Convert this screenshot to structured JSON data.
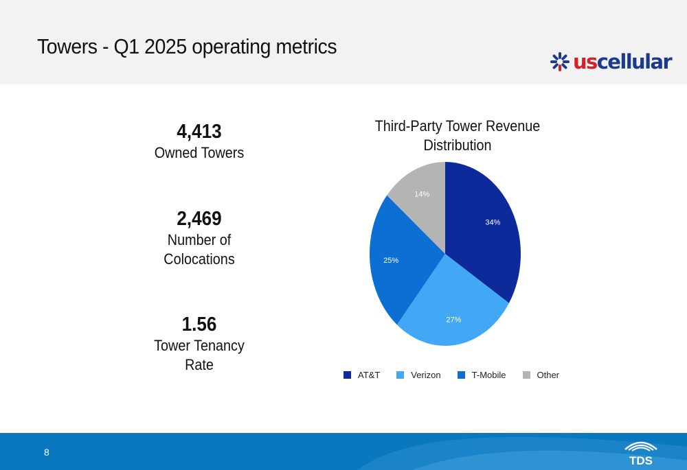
{
  "header": {
    "title": "Towers - Q1 2025 operating metrics"
  },
  "logo": {
    "us": "us",
    "cellular": "cellular",
    "name": "uscellular-logo"
  },
  "metrics": [
    {
      "value": "4,413",
      "label_lines": [
        "Owned Towers"
      ]
    },
    {
      "value": "2,469",
      "label_lines": [
        "Number of",
        "Colocations"
      ]
    },
    {
      "value": "1.56",
      "label_lines": [
        "Tower Tenancy",
        "Rate"
      ]
    }
  ],
  "chart_title_lines": [
    "Third-Party Tower Revenue",
    "Distribution"
  ],
  "chart_data": {
    "type": "pie",
    "title": "Third-Party Tower Revenue Distribution",
    "categories": [
      "AT&T",
      "Verizon",
      "T-Mobile",
      "Other"
    ],
    "values": [
      34,
      27,
      25,
      14
    ],
    "labels": [
      "34%",
      "27%",
      "25%",
      "14%"
    ],
    "colors": [
      "#0d2a9a",
      "#42a8f5",
      "#0b6fd3",
      "#b4b4b4"
    ],
    "legend_position": "bottom"
  },
  "footer": {
    "page_number": "8",
    "logo_text": "TDS"
  }
}
